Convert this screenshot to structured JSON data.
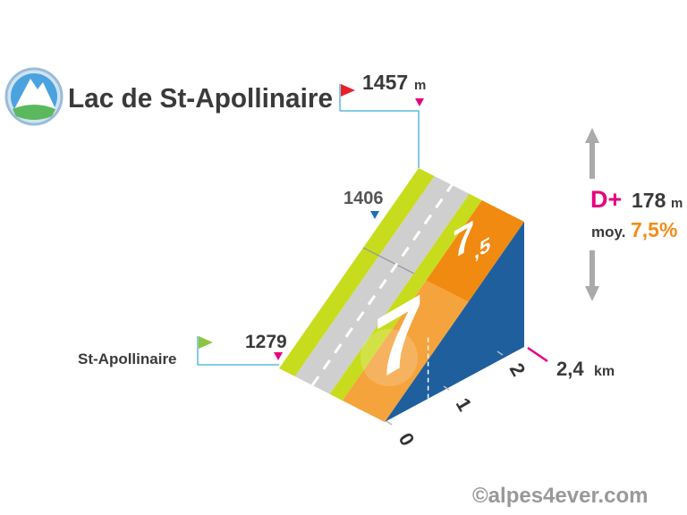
{
  "summit": {
    "name": "Lac de St-Apollinaire",
    "altitude": "1457",
    "unit": "m"
  },
  "intermediate": {
    "altitude": "1406"
  },
  "start": {
    "name": "St-Apollinaire",
    "altitude": "1279"
  },
  "stats": {
    "gain_label": "D+",
    "gain": "178",
    "gain_unit": "m",
    "avg_label": "moy.",
    "avg": "7,5%"
  },
  "segments": [
    {
      "gradient": "7"
    },
    {
      "gradient": "7",
      "decimal": ",5"
    }
  ],
  "distance": {
    "value": "2,4",
    "unit": "km"
  },
  "km_ticks": [
    "0",
    "1",
    "2"
  ],
  "credit": "©alpes4ever.com"
}
